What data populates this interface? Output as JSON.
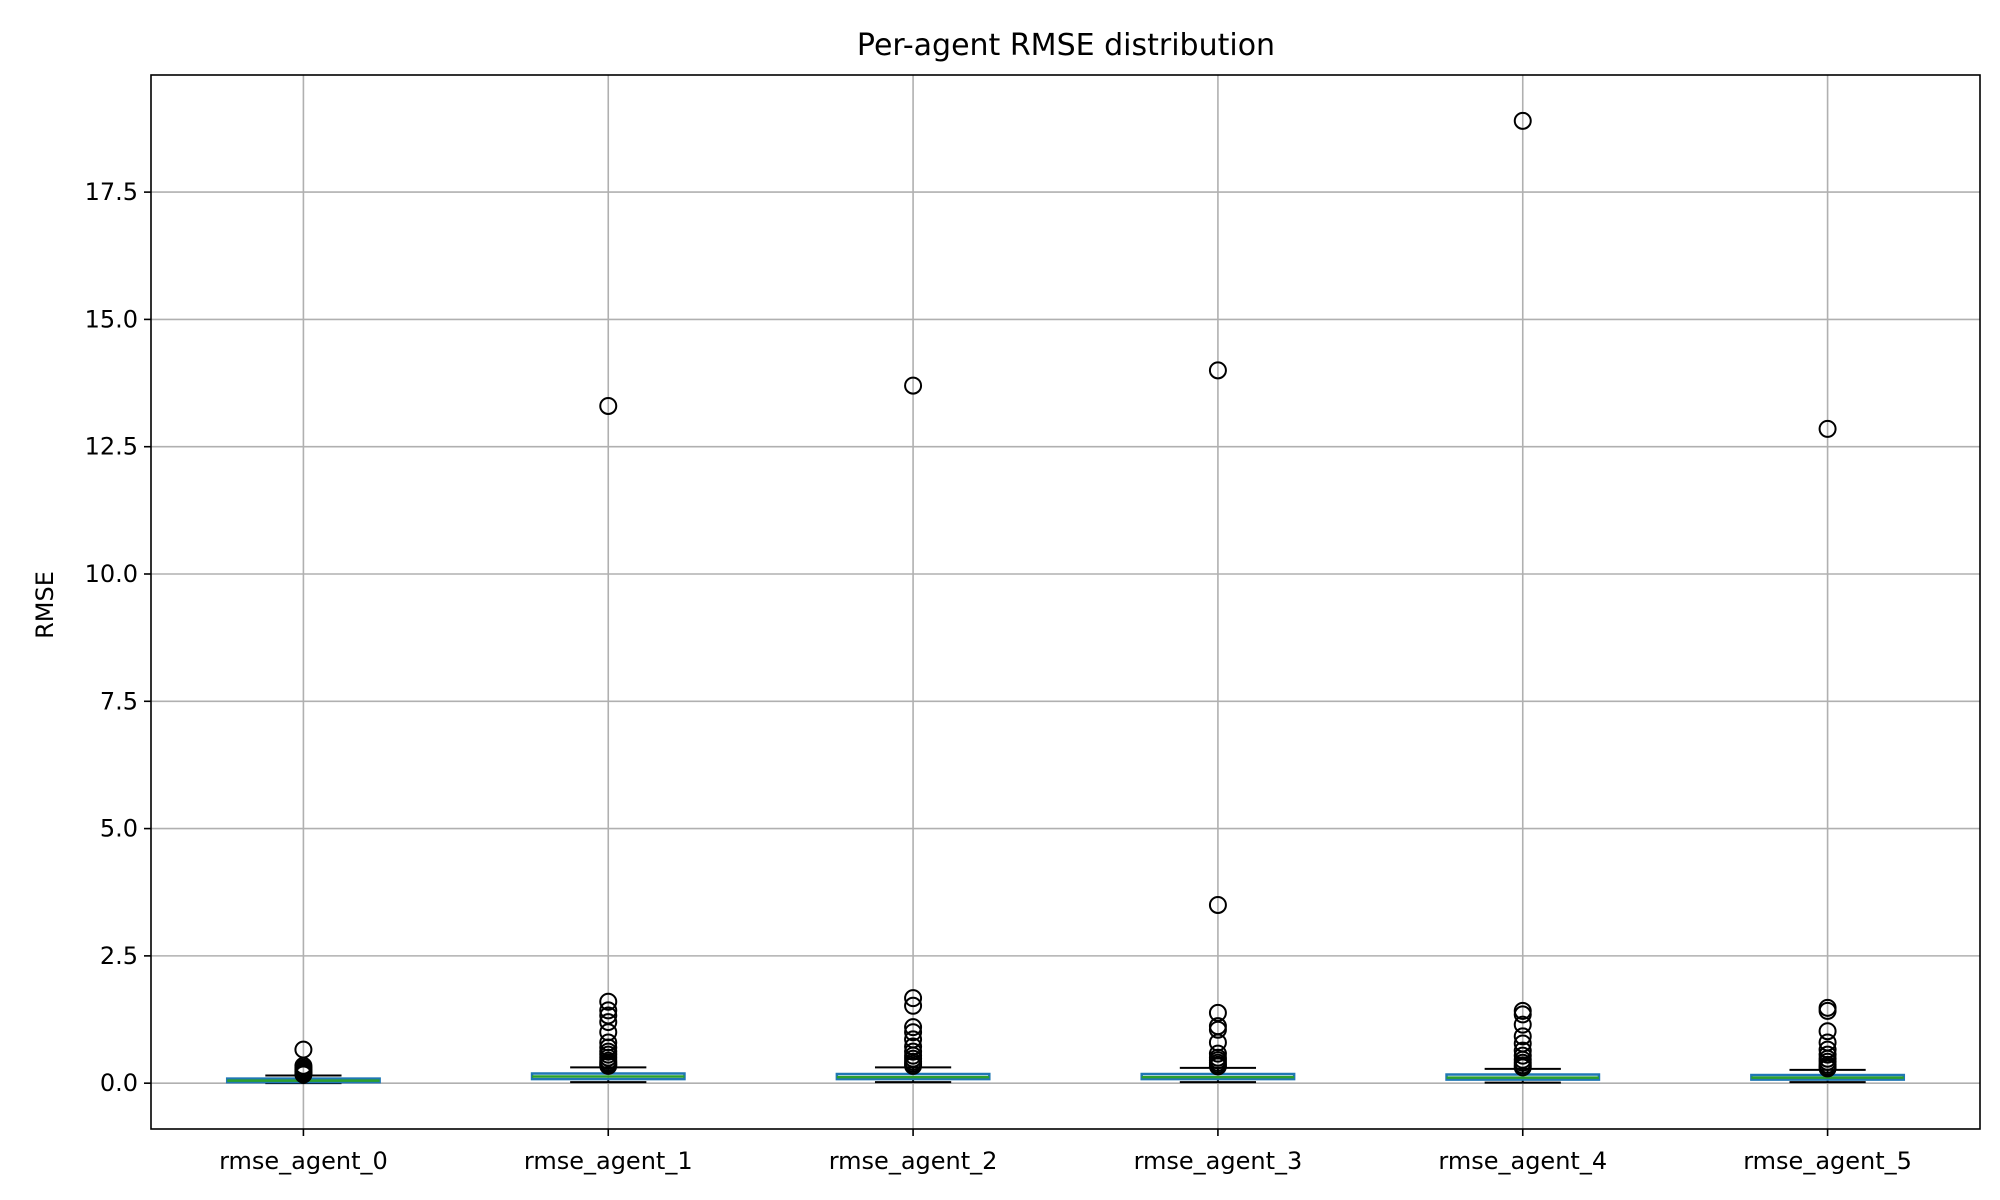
{
  "chart_data": {
    "type": "box",
    "title": "Per-agent RMSE distribution",
    "xlabel": "",
    "ylabel": "RMSE",
    "ylim": [
      -0.9,
      19.8
    ],
    "yticks": [
      0.0,
      2.5,
      5.0,
      7.5,
      10.0,
      12.5,
      15.0,
      17.5
    ],
    "ytick_labels": [
      "0.0",
      "2.5",
      "5.0",
      "7.5",
      "10.0",
      "12.5",
      "15.0",
      "17.5"
    ],
    "grid": true,
    "categories": [
      "rmse_agent_0",
      "rmse_agent_1",
      "rmse_agent_2",
      "rmse_agent_3",
      "rmse_agent_4",
      "rmse_agent_5"
    ],
    "boxes": [
      {
        "whisker_low": 0.0,
        "q1": 0.02,
        "median": 0.05,
        "q3": 0.09,
        "whisker_high": 0.15,
        "outliers": [
          0.17,
          0.19,
          0.22,
          0.24,
          0.27,
          0.3,
          0.34,
          0.66
        ]
      },
      {
        "whisker_low": 0.02,
        "q1": 0.08,
        "median": 0.13,
        "q3": 0.19,
        "whisker_high": 0.31,
        "outliers": [
          0.34,
          0.37,
          0.4,
          0.44,
          0.5,
          0.56,
          0.62,
          0.7,
          0.8,
          1.0,
          1.2,
          1.33,
          1.43,
          1.6,
          13.3
        ]
      },
      {
        "whisker_low": 0.02,
        "q1": 0.08,
        "median": 0.12,
        "q3": 0.18,
        "whisker_high": 0.31,
        "outliers": [
          0.34,
          0.38,
          0.42,
          0.48,
          0.54,
          0.62,
          0.72,
          0.86,
          1.0,
          1.1,
          1.52,
          1.67,
          13.7
        ]
      },
      {
        "whisker_low": 0.02,
        "q1": 0.08,
        "median": 0.12,
        "q3": 0.18,
        "whisker_high": 0.3,
        "outliers": [
          0.33,
          0.36,
          0.4,
          0.45,
          0.5,
          0.58,
          0.8,
          1.05,
          1.12,
          1.38,
          3.5,
          14.0
        ]
      },
      {
        "whisker_low": 0.01,
        "q1": 0.07,
        "median": 0.11,
        "q3": 0.17,
        "whisker_high": 0.28,
        "outliers": [
          0.31,
          0.35,
          0.4,
          0.46,
          0.54,
          0.64,
          0.78,
          0.92,
          1.15,
          1.35,
          1.42,
          18.9
        ]
      },
      {
        "whisker_low": 0.02,
        "q1": 0.07,
        "median": 0.11,
        "q3": 0.16,
        "whisker_high": 0.26,
        "outliers": [
          0.29,
          0.32,
          0.36,
          0.42,
          0.48,
          0.56,
          0.66,
          0.8,
          1.02,
          1.42,
          1.48,
          12.85
        ]
      }
    ],
    "colors": {
      "box": "#1f77b4",
      "median": "#2ca02c",
      "whisker": "#000000",
      "outlier": "#000000",
      "grid": "#b0b0b0",
      "frame": "#000000"
    }
  }
}
